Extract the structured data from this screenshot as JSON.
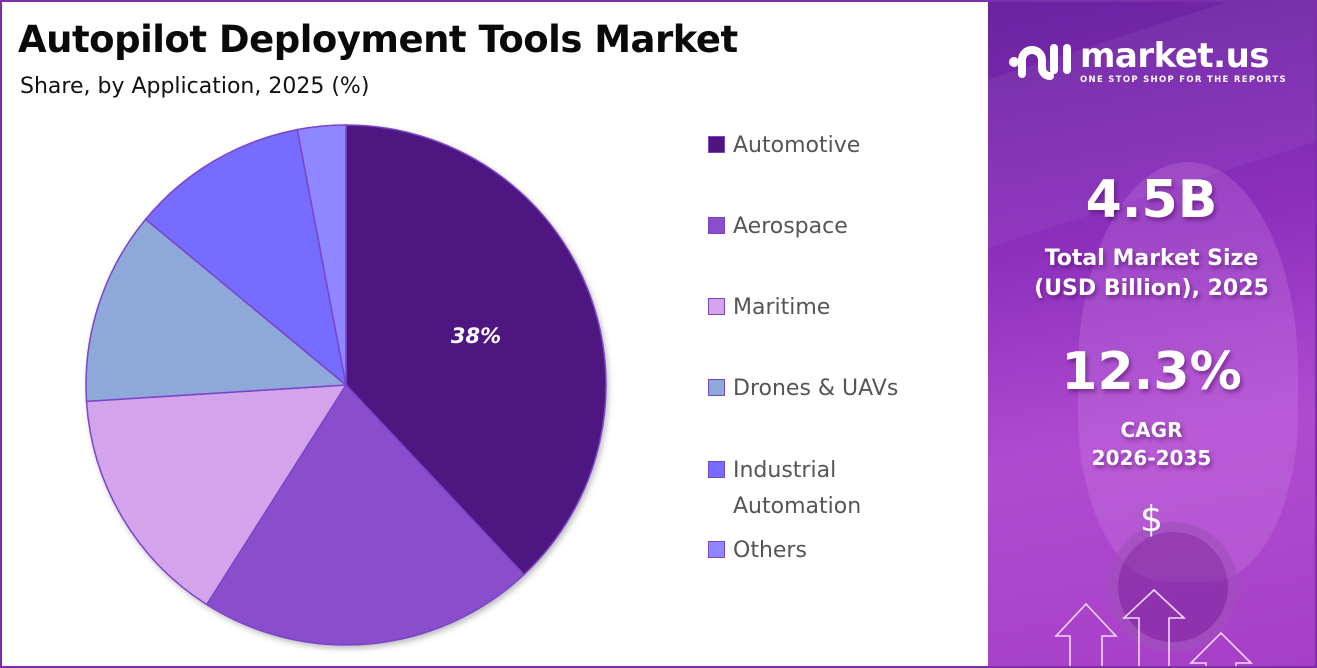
{
  "header": {
    "title": "Autopilot Deployment Tools Market",
    "subtitle": "Share, by Application, 2025 (%)"
  },
  "legend": {
    "items": [
      {
        "label": "Automotive",
        "color": "#4e1580"
      },
      {
        "label": "Aerospace",
        "color": "#8a4dcc"
      },
      {
        "label": "Maritime",
        "color": "#d3a4ec"
      },
      {
        "label": "Drones & UAVs",
        "color": "#8fa8da"
      },
      {
        "label": "Industrial",
        "label2": "Automation",
        "color": "#766cff"
      },
      {
        "label": "Others",
        "color": "#8e87ff"
      }
    ]
  },
  "pie": {
    "highlight_label": "38%"
  },
  "side_panel": {
    "brand_name": "market.us",
    "brand_tagline": "ONE STOP SHOP FOR THE REPORTS",
    "market_size_value": "4.5B",
    "market_size_label_line1": "Total Market Size",
    "market_size_label_line2": "(USD Billion), 2025",
    "cagr_value": "12.3%",
    "cagr_label_line1": "CAGR",
    "cagr_label_line2": "2026-2035",
    "dollar_icon": "$"
  },
  "chart_data": {
    "type": "pie",
    "title": "Autopilot Deployment Tools Market",
    "subtitle": "Share, by Application, 2025 (%)",
    "categories": [
      "Automotive",
      "Aerospace",
      "Maritime",
      "Drones & UAVs",
      "Industrial Automation",
      "Others"
    ],
    "values": [
      38,
      21,
      15,
      12,
      11,
      3
    ],
    "colors": [
      "#4e1580",
      "#8a4dcc",
      "#d3a4ec",
      "#8fa8da",
      "#766cff",
      "#8e87ff"
    ],
    "data_labels": {
      "Automotive": "38%"
    },
    "start_angle": "12 o'clock, clockwise",
    "legend_position": "right"
  }
}
